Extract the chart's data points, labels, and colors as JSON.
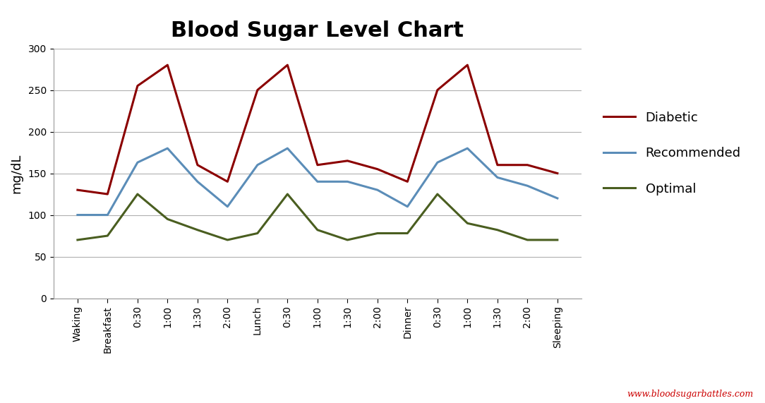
{
  "title": "Blood Sugar Level Chart",
  "ylabel": "mg/dL",
  "categories": [
    "Waking",
    "Breakfast",
    "0:30",
    "1:00",
    "1:30",
    "2:00",
    "Lunch",
    "0:30",
    "1:00",
    "1:30",
    "2:00",
    "Dinner",
    "0:30",
    "1:00",
    "1:30",
    "2:00",
    "Sleeping"
  ],
  "diabetic": [
    130,
    125,
    255,
    280,
    160,
    140,
    250,
    280,
    160,
    165,
    155,
    140,
    250,
    280,
    160,
    160,
    150
  ],
  "recommended": [
    100,
    100,
    163,
    180,
    140,
    110,
    160,
    180,
    140,
    140,
    130,
    110,
    163,
    180,
    145,
    135,
    120
  ],
  "optimal": [
    70,
    75,
    125,
    95,
    82,
    70,
    78,
    125,
    82,
    70,
    78,
    78,
    125,
    90,
    82,
    70,
    70
  ],
  "diabetic_color": "#8B0000",
  "recommended_color": "#5B8DB8",
  "optimal_color": "#4A5E20",
  "ylim": [
    0,
    300
  ],
  "yticks": [
    0,
    50,
    100,
    150,
    200,
    250,
    300
  ],
  "title_fontsize": 22,
  "axis_label_fontsize": 13,
  "tick_fontsize": 10,
  "legend_labels": [
    "Diabetic",
    "Recommended",
    "Optimal"
  ],
  "watermark": "www.bloodsugarbattles.com",
  "watermark_color": "#CC0000",
  "background_color": "#FFFFFF",
  "grid_color": "#B0B0B0",
  "line_width": 2.2
}
